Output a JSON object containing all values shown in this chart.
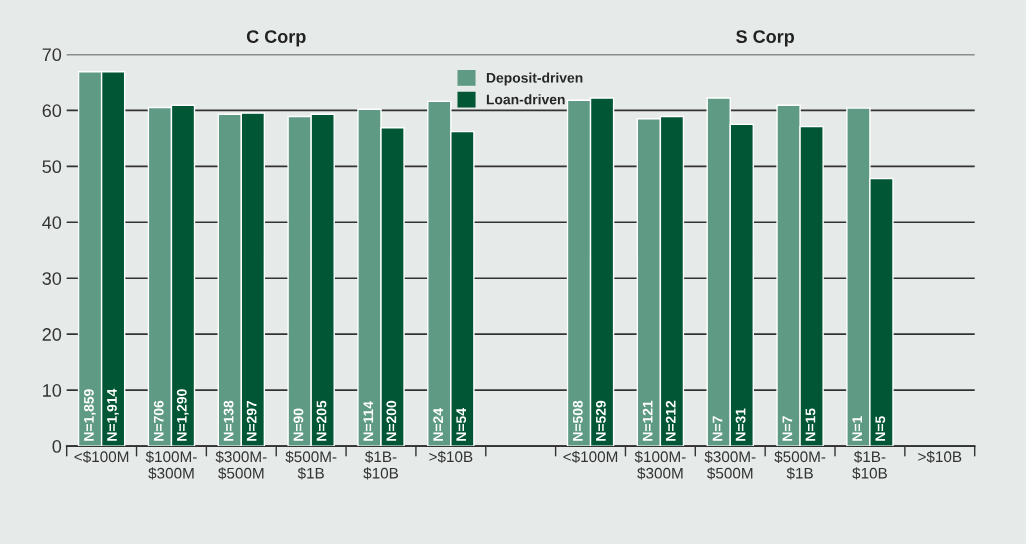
{
  "chart_data": {
    "type": "bar",
    "categories": [
      "<$100M",
      "$100M-\n$300M",
      "$300M-\n$500M",
      "$500M-\n$1B",
      "$1B-\n$10B",
      ">$10B",
      null,
      "<$100M",
      "$100M-\n$300M",
      "$300M-\n$500M",
      "$500M-\n$1B",
      "$1B-\n$10B",
      ">$10B"
    ],
    "series": [
      {
        "name": "Deposit-driven",
        "color": "#5e9a84",
        "values": [
          66.9,
          60.5,
          59.3,
          58.9,
          60.2,
          61.6,
          null,
          61.8,
          58.5,
          62.2,
          60.9,
          60.4,
          null
        ]
      },
      {
        "name": "Loan-driven",
        "color": "#005635",
        "values": [
          66.9,
          60.9,
          59.5,
          59.3,
          56.9,
          56.2,
          null,
          62.2,
          58.9,
          57.5,
          57.1,
          47.8,
          null
        ]
      }
    ],
    "annotations": [
      "C Corp",
      "S Corp",
      "N=1,859",
      "N=1,914",
      "N=706",
      "N=1,290",
      "N=138",
      "N=297",
      "N=90",
      "N=205",
      "N=114",
      "N=200",
      "N=24",
      "N=54",
      "N=508",
      "N=529",
      "N=121",
      "N=212",
      "N=7",
      "N=31",
      "N=7",
      "N=15",
      "N=1",
      "N=5"
    ],
    "ylim": [
      0,
      70
    ],
    "yticks": [
      0,
      10,
      20,
      30,
      40,
      50,
      60,
      70
    ],
    "grid": "y",
    "legend": "top"
  }
}
